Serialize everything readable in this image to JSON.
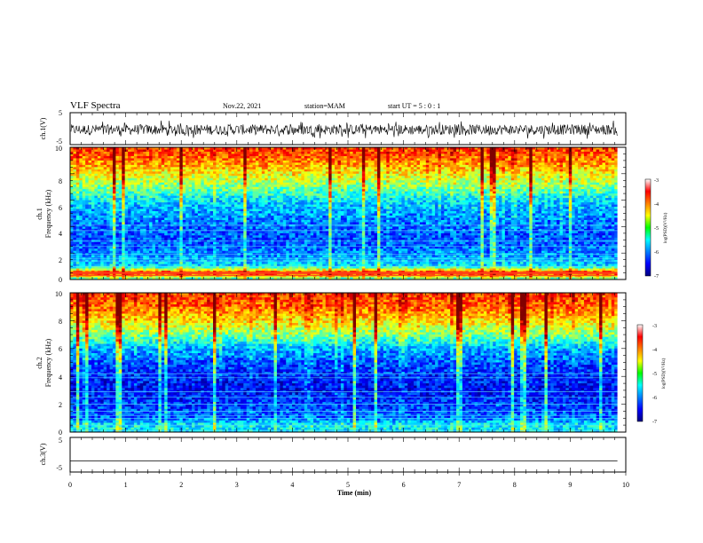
{
  "header": {
    "title": "VLF Spectra",
    "date": "Nov.22, 2021",
    "station": "station=MAM",
    "start": "start UT =  5 : 0  : 1"
  },
  "chart_data": [
    {
      "type": "line",
      "panel": "ch1-waveform",
      "ylabel": "ch.1(V)",
      "y_ticks": [
        "5",
        "-5"
      ],
      "ylim": [
        -5,
        5
      ],
      "xlim": [
        0,
        10
      ],
      "x_data_extent": [
        0,
        9.85
      ],
      "series": [
        {
          "values_range": [
            -1.6,
            1.6
          ],
          "baseline": -0.3
        }
      ],
      "color": "#000000"
    },
    {
      "type": "heatmap",
      "panel": "ch1-spectrogram",
      "ylabel": [
        "ch.1",
        "Frequency (kHz)"
      ],
      "y_ticks": [
        "0",
        "2",
        "4",
        "6",
        "8",
        "10"
      ],
      "ylim": [
        0,
        10
      ],
      "xlim": [
        0,
        10
      ],
      "x_data_extent": [
        0,
        9.85
      ],
      "colorbar": {
        "label": "log(PSD)(V²/Hz)",
        "ticks": [
          "-3",
          "-4",
          "-5",
          "-6",
          "-7"
        ],
        "range": [
          -7,
          -3
        ]
      },
      "profile": {
        "freq_kHz": [
          0,
          0.5,
          1,
          2,
          3,
          4,
          5,
          6,
          7,
          8,
          9,
          10
        ],
        "log_psd": [
          -5.3,
          -3.6,
          -5.6,
          -6.0,
          -6.2,
          -6.1,
          -5.9,
          -5.6,
          -5.0,
          -4.5,
          -4.0,
          -3.7
        ]
      },
      "lines_kHz": [
        0.3,
        0.45,
        0.5,
        0.55,
        1.0,
        1.4,
        1.6,
        1.9,
        2.5,
        2.9,
        3.7,
        4.1
      ]
    },
    {
      "type": "heatmap",
      "panel": "ch2-spectrogram",
      "ylabel": [
        "ch.2",
        "Frequency (kHz)"
      ],
      "y_ticks": [
        "0",
        "2",
        "4",
        "6",
        "8",
        "10"
      ],
      "ylim": [
        0,
        10
      ],
      "xlim": [
        0,
        10
      ],
      "x_data_extent": [
        0,
        9.85
      ],
      "colorbar": {
        "label": "log(PSD)(V²/Hz)",
        "ticks": [
          "-3",
          "-4",
          "-5",
          "-6",
          "-7"
        ],
        "range": [
          -7,
          -3
        ]
      },
      "profile": {
        "freq_kHz": [
          0,
          0.5,
          1,
          2,
          3,
          4,
          5,
          6,
          7,
          8,
          9,
          10
        ],
        "log_psd": [
          -5.6,
          -5.5,
          -6.1,
          -6.3,
          -6.5,
          -6.4,
          -6.2,
          -5.8,
          -5.0,
          -4.4,
          -3.9,
          -3.7
        ]
      },
      "lines_kHz": [
        0.1,
        0.5,
        1.0,
        1.2,
        1.5,
        2.0,
        2.5,
        2.9,
        3.9,
        4.2
      ]
    },
    {
      "type": "line",
      "panel": "ch3-waveform",
      "ylabel": "ch.3(V)",
      "y_ticks": [
        "5",
        "-5"
      ],
      "ylim": [
        -5,
        5
      ],
      "xlim": [
        0,
        10
      ],
      "x_data_extent": [
        0,
        9.85
      ],
      "xlabel": "Time (min)",
      "x_ticks": [
        "0",
        "1",
        "2",
        "3",
        "4",
        "5",
        "6",
        "7",
        "8",
        "9",
        "10"
      ],
      "series": [
        {
          "constant": -1.8
        }
      ],
      "color": "#000000"
    }
  ]
}
